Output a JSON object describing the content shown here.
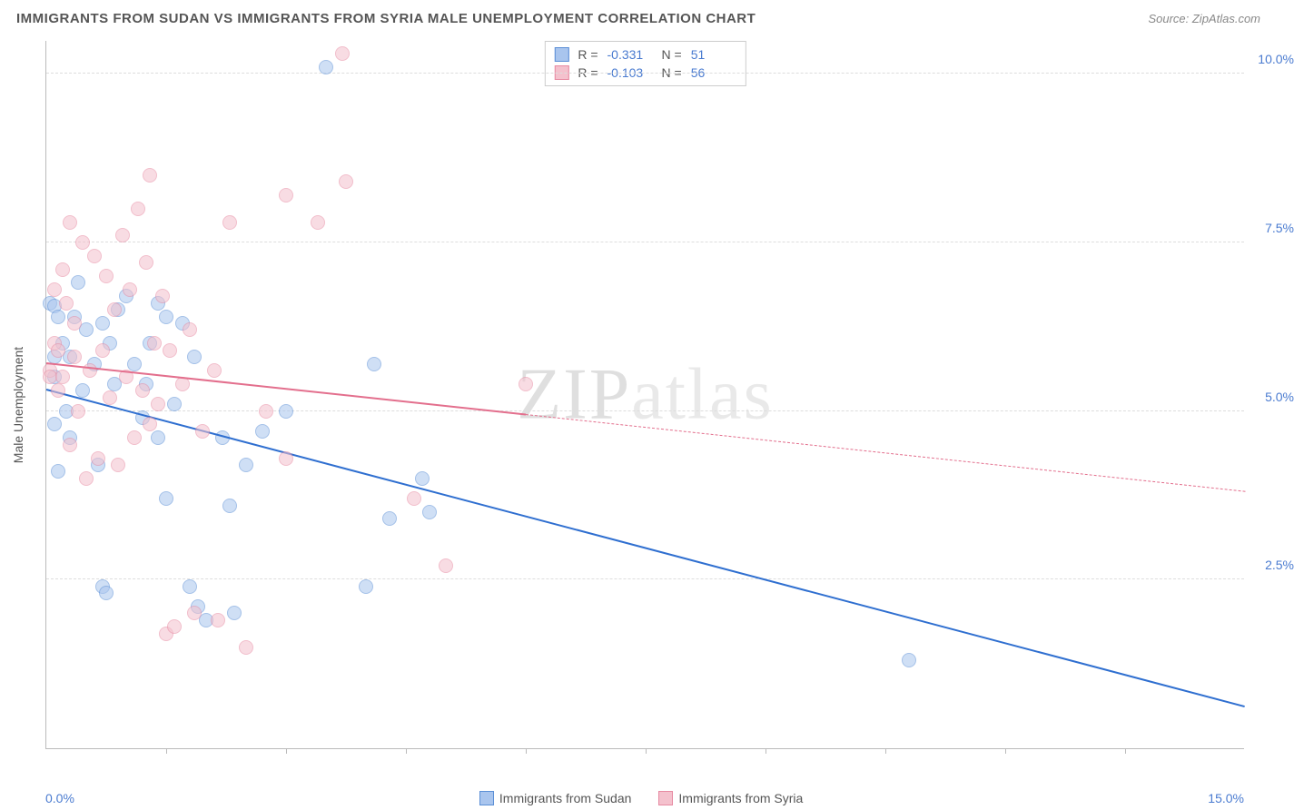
{
  "title": "IMMIGRANTS FROM SUDAN VS IMMIGRANTS FROM SYRIA MALE UNEMPLOYMENT CORRELATION CHART",
  "source": "Source: ZipAtlas.com",
  "y_axis_title": "Male Unemployment",
  "watermark_bold": "ZIP",
  "watermark_thin": "atlas",
  "chart": {
    "type": "scatter",
    "xlim": [
      0,
      15
    ],
    "ylim": [
      0,
      10.5
    ],
    "x_origin_label": "0.0%",
    "x_max_label": "15.0%",
    "y_ticks": [
      {
        "v": 2.5,
        "label": "2.5%"
      },
      {
        "v": 5.0,
        "label": "5.0%"
      },
      {
        "v": 7.5,
        "label": "7.5%"
      },
      {
        "v": 10.0,
        "label": "10.0%"
      }
    ],
    "x_tick_positions": [
      1.5,
      3.0,
      4.5,
      6.0,
      7.5,
      9.0,
      10.5,
      12.0,
      13.5
    ],
    "grid_color": "#dddddd",
    "axis_color": "#bbbbbb",
    "background_color": "#ffffff",
    "marker_radius": 8,
    "marker_opacity": 0.55,
    "series": [
      {
        "name": "Immigrants from Sudan",
        "color_fill": "#a9c5ee",
        "color_stroke": "#5b8fd6",
        "trend_color": "#2f6fd0",
        "r_label": "R =",
        "r_value": "-0.331",
        "n_label": "N =",
        "n_value": "51",
        "trend": {
          "x1": 0.0,
          "y1": 5.3,
          "x2": 15.0,
          "y2": 0.6,
          "solid_until_x": 15.0
        },
        "points": [
          [
            0.05,
            6.6
          ],
          [
            0.1,
            6.55
          ],
          [
            0.1,
            5.8
          ],
          [
            0.1,
            5.5
          ],
          [
            0.1,
            4.8
          ],
          [
            0.15,
            6.4
          ],
          [
            0.15,
            4.1
          ],
          [
            0.2,
            6.0
          ],
          [
            0.25,
            5.0
          ],
          [
            0.3,
            5.8
          ],
          [
            0.3,
            4.6
          ],
          [
            0.35,
            6.4
          ],
          [
            0.4,
            6.9
          ],
          [
            0.45,
            5.3
          ],
          [
            0.5,
            6.2
          ],
          [
            0.6,
            5.7
          ],
          [
            0.65,
            4.2
          ],
          [
            0.7,
            6.3
          ],
          [
            0.7,
            2.4
          ],
          [
            0.75,
            2.3
          ],
          [
            0.8,
            6.0
          ],
          [
            0.85,
            5.4
          ],
          [
            0.9,
            6.5
          ],
          [
            1.0,
            6.7
          ],
          [
            1.1,
            5.7
          ],
          [
            1.2,
            4.9
          ],
          [
            1.25,
            5.4
          ],
          [
            1.3,
            6.0
          ],
          [
            1.4,
            6.6
          ],
          [
            1.4,
            4.6
          ],
          [
            1.5,
            6.4
          ],
          [
            1.5,
            3.7
          ],
          [
            1.6,
            5.1
          ],
          [
            1.7,
            6.3
          ],
          [
            1.8,
            2.4
          ],
          [
            1.85,
            5.8
          ],
          [
            1.9,
            2.1
          ],
          [
            2.0,
            1.9
          ],
          [
            2.2,
            4.6
          ],
          [
            2.3,
            3.6
          ],
          [
            2.35,
            2.0
          ],
          [
            2.5,
            4.2
          ],
          [
            2.7,
            4.7
          ],
          [
            3.0,
            5.0
          ],
          [
            3.5,
            10.1
          ],
          [
            4.0,
            2.4
          ],
          [
            4.1,
            5.7
          ],
          [
            4.3,
            3.4
          ],
          [
            4.7,
            4.0
          ],
          [
            4.8,
            3.5
          ],
          [
            10.8,
            1.3
          ]
        ]
      },
      {
        "name": "Immigrants from Syria",
        "color_fill": "#f4c1cd",
        "color_stroke": "#e78aa2",
        "trend_color": "#e36f8d",
        "r_label": "R =",
        "r_value": "-0.103",
        "n_label": "N =",
        "n_value": "56",
        "trend": {
          "x1": 0.0,
          "y1": 5.7,
          "x2": 15.0,
          "y2": 3.8,
          "solid_until_x": 6.0
        },
        "points": [
          [
            0.05,
            5.6
          ],
          [
            0.05,
            5.5
          ],
          [
            0.1,
            6.8
          ],
          [
            0.1,
            6.0
          ],
          [
            0.15,
            5.3
          ],
          [
            0.15,
            5.9
          ],
          [
            0.2,
            7.1
          ],
          [
            0.2,
            5.5
          ],
          [
            0.25,
            6.6
          ],
          [
            0.3,
            7.8
          ],
          [
            0.3,
            4.5
          ],
          [
            0.35,
            5.8
          ],
          [
            0.35,
            6.3
          ],
          [
            0.4,
            5.0
          ],
          [
            0.45,
            7.5
          ],
          [
            0.5,
            4.0
          ],
          [
            0.55,
            5.6
          ],
          [
            0.6,
            7.3
          ],
          [
            0.65,
            4.3
          ],
          [
            0.7,
            5.9
          ],
          [
            0.75,
            7.0
          ],
          [
            0.8,
            5.2
          ],
          [
            0.85,
            6.5
          ],
          [
            0.9,
            4.2
          ],
          [
            0.95,
            7.6
          ],
          [
            1.0,
            5.5
          ],
          [
            1.05,
            6.8
          ],
          [
            1.1,
            4.6
          ],
          [
            1.15,
            8.0
          ],
          [
            1.2,
            5.3
          ],
          [
            1.25,
            7.2
          ],
          [
            1.3,
            4.8
          ],
          [
            1.3,
            8.5
          ],
          [
            1.35,
            6.0
          ],
          [
            1.4,
            5.1
          ],
          [
            1.45,
            6.7
          ],
          [
            1.5,
            1.7
          ],
          [
            1.55,
            5.9
          ],
          [
            1.6,
            1.8
          ],
          [
            1.7,
            5.4
          ],
          [
            1.8,
            6.2
          ],
          [
            1.85,
            2.0
          ],
          [
            1.95,
            4.7
          ],
          [
            2.1,
            5.6
          ],
          [
            2.15,
            1.9
          ],
          [
            2.3,
            7.8
          ],
          [
            2.5,
            1.5
          ],
          [
            2.75,
            5.0
          ],
          [
            3.0,
            8.2
          ],
          [
            3.0,
            4.3
          ],
          [
            3.4,
            7.8
          ],
          [
            3.7,
            10.3
          ],
          [
            3.75,
            8.4
          ],
          [
            4.6,
            3.7
          ],
          [
            5.0,
            2.7
          ],
          [
            6.0,
            5.4
          ]
        ]
      }
    ]
  },
  "legend_bottom": [
    {
      "label": "Immigrants from Sudan",
      "fill": "#a9c5ee",
      "stroke": "#5b8fd6"
    },
    {
      "label": "Immigrants from Syria",
      "fill": "#f4c1cd",
      "stroke": "#e78aa2"
    }
  ]
}
